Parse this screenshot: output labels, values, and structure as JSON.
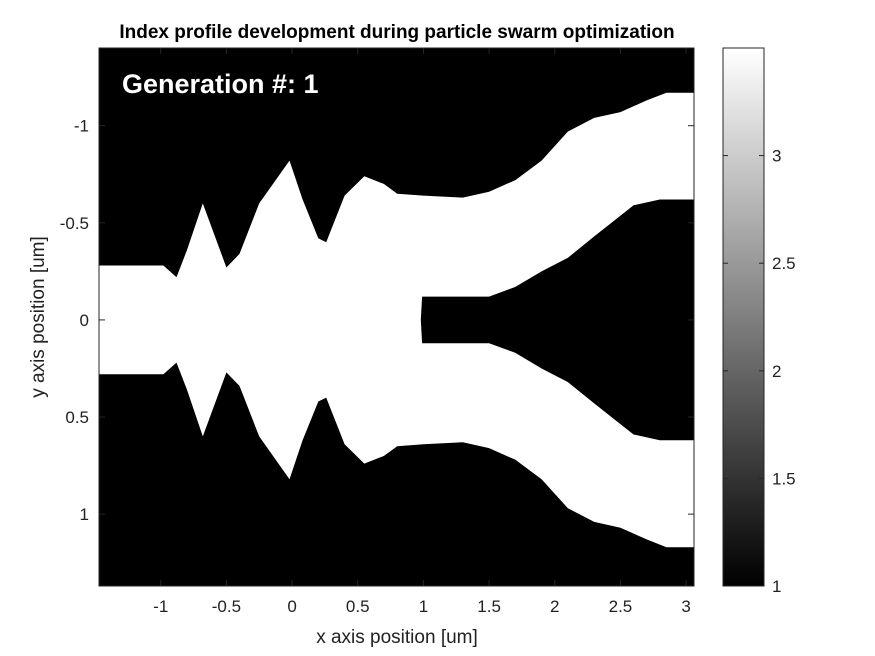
{
  "chart_data": {
    "type": "heatmap",
    "title": "Index profile development during particle swarm optimization",
    "xlabel": "x axis position [um]",
    "ylabel": "y axis position [um]",
    "annotation": "Generation #: 1",
    "xlim": [
      -1.47,
      3.06
    ],
    "ylim": [
      -1.4,
      1.37
    ],
    "y_reversed": true,
    "x_ticks": [
      -1,
      -0.5,
      0,
      0.5,
      1,
      1.5,
      2,
      2.5,
      3
    ],
    "y_ticks": [
      -1,
      -0.5,
      0,
      0.5,
      1
    ],
    "x_tick_labels": [
      "-1",
      "-0.5",
      "0",
      "0.5",
      "1",
      "1.5",
      "2",
      "2.5",
      "3"
    ],
    "y_tick_labels": [
      "-1",
      "-0.5",
      "0",
      "0.5",
      "1"
    ],
    "colorbar": {
      "range": [
        1,
        3.5
      ],
      "ticks": [
        1,
        1.5,
        2,
        2.5,
        3
      ],
      "tick_labels": [
        "1",
        "1.5",
        "2",
        "2.5",
        "3"
      ],
      "colormap": "gray"
    },
    "background_index": 1,
    "core_index": 3.5,
    "grid": false,
    "structure": {
      "description_free": true,
      "outer_halfwidth": [
        [
          -1.47,
          0.28
        ],
        [
          -0.98,
          0.28
        ],
        [
          -0.88,
          0.22
        ],
        [
          -0.8,
          0.36
        ],
        [
          -0.68,
          0.6
        ],
        [
          -0.5,
          0.27
        ],
        [
          -0.4,
          0.34
        ],
        [
          -0.25,
          0.6
        ],
        [
          -0.02,
          0.82
        ],
        [
          0.08,
          0.62
        ],
        [
          0.2,
          0.42
        ],
        [
          0.26,
          0.4
        ],
        [
          0.4,
          0.64
        ],
        [
          0.55,
          0.74
        ],
        [
          0.7,
          0.7
        ],
        [
          0.8,
          0.65
        ],
        [
          1.0,
          0.64
        ],
        [
          1.3,
          0.63
        ],
        [
          1.5,
          0.66
        ],
        [
          1.7,
          0.72
        ],
        [
          1.9,
          0.82
        ],
        [
          2.1,
          0.97
        ],
        [
          2.3,
          1.04
        ],
        [
          2.5,
          1.07
        ],
        [
          2.7,
          1.13
        ],
        [
          2.85,
          1.17
        ],
        [
          3.06,
          1.17
        ]
      ],
      "inner_halfwidth": [
        [
          0.98,
          0.0
        ],
        [
          0.99,
          0.12
        ],
        [
          1.5,
          0.12
        ],
        [
          1.7,
          0.17
        ],
        [
          1.9,
          0.25
        ],
        [
          2.1,
          0.32
        ],
        [
          2.3,
          0.43
        ],
        [
          2.45,
          0.51
        ],
        [
          2.6,
          0.59
        ],
        [
          2.8,
          0.62
        ],
        [
          3.06,
          0.62
        ]
      ]
    }
  }
}
